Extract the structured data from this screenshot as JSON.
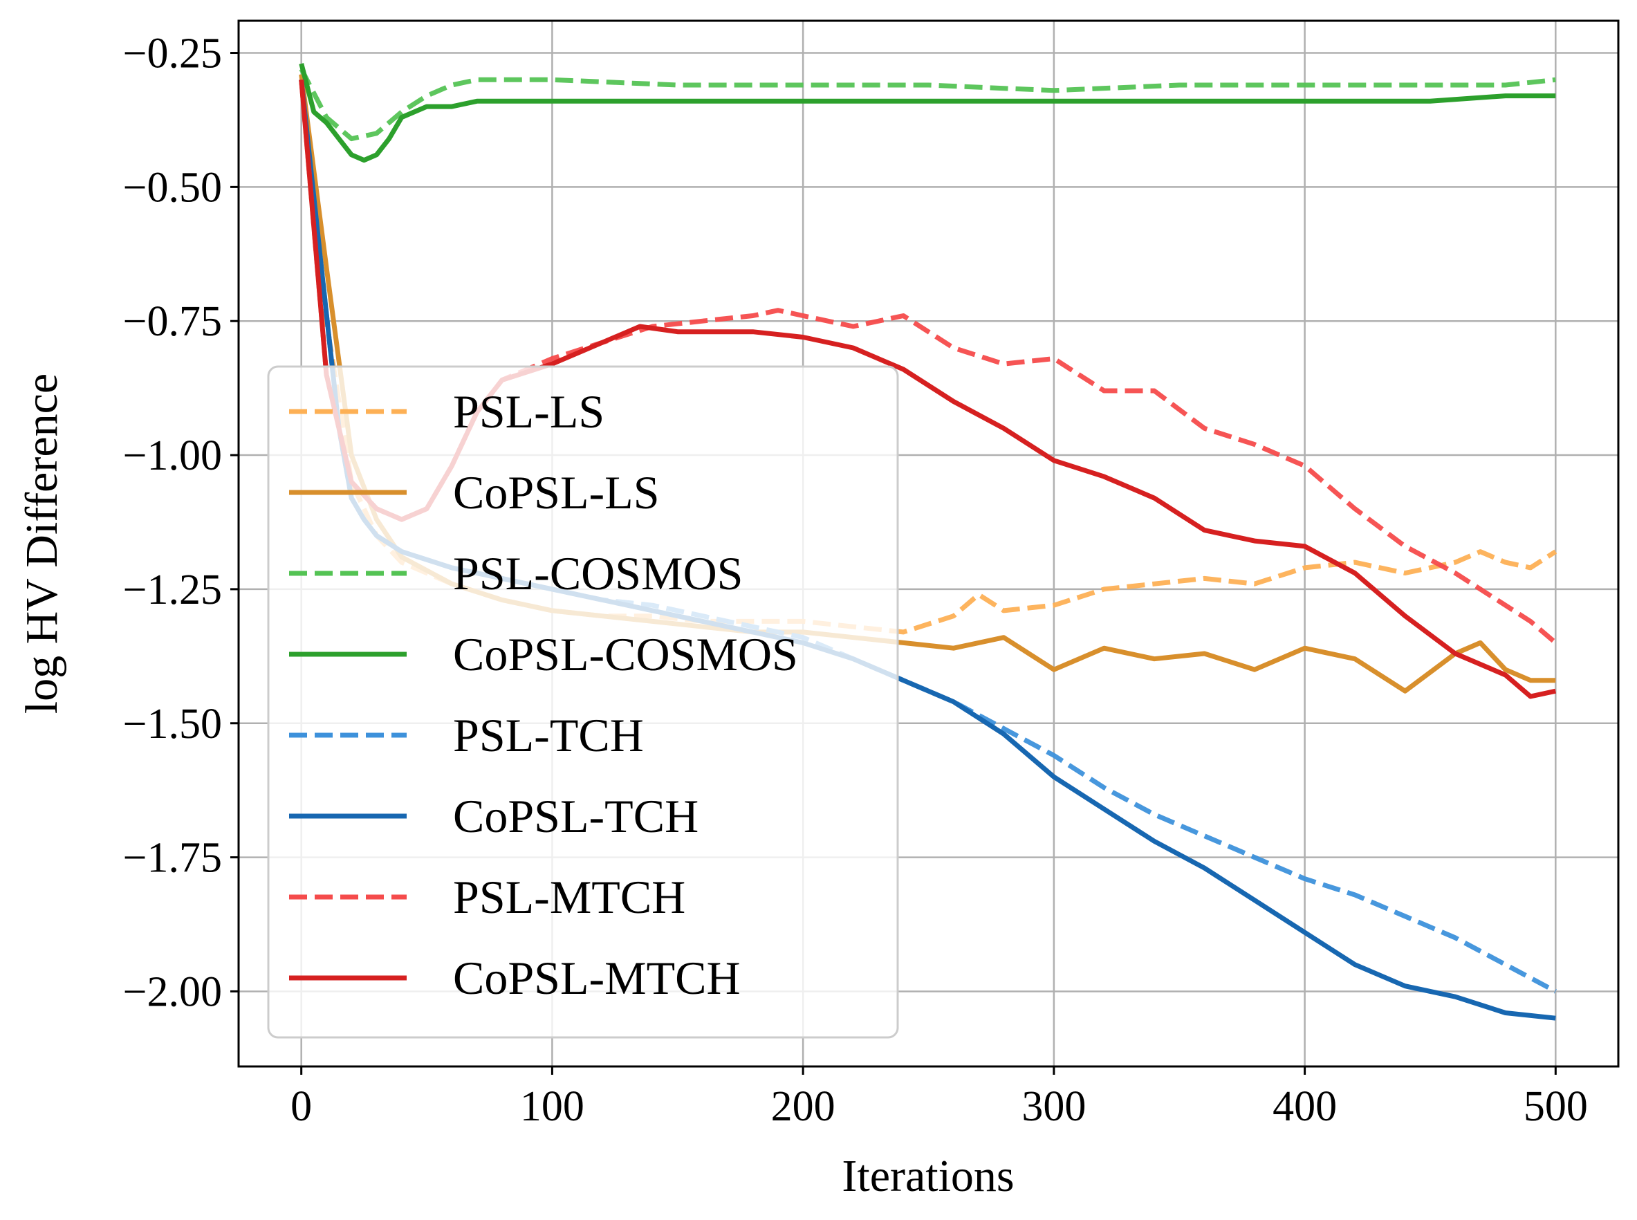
{
  "chart_data": {
    "type": "line",
    "title": "",
    "xlabel": "Iterations",
    "ylabel": "log HV Difference",
    "xlim": [
      -25,
      525
    ],
    "ylim": [
      -2.14,
      -0.19
    ],
    "x_ticks": [
      0,
      100,
      200,
      300,
      400,
      500
    ],
    "x_tick_labels": [
      "0",
      "100",
      "200",
      "300",
      "400",
      "500"
    ],
    "y_ticks": [
      -0.25,
      -0.5,
      -0.75,
      -1.0,
      -1.25,
      -1.5,
      -1.75,
      -2.0
    ],
    "y_tick_labels": [
      "−0.25",
      "−0.50",
      "−0.75",
      "−1.00",
      "−1.25",
      "−1.50",
      "−1.75",
      "−2.00"
    ],
    "grid": true,
    "legend_position": "center-left",
    "series": [
      {
        "name": "PSL-LS",
        "color": "#fdb055",
        "style": "dashed",
        "x": [
          0,
          10,
          20,
          30,
          40,
          60,
          80,
          100,
          120,
          140,
          160,
          180,
          200,
          220,
          240,
          260,
          270,
          280,
          300,
          320,
          340,
          360,
          380,
          400,
          420,
          440,
          460,
          470,
          480,
          490,
          500
        ],
        "y": [
          -0.3,
          -0.75,
          -1.05,
          -1.15,
          -1.2,
          -1.24,
          -1.27,
          -1.29,
          -1.3,
          -1.3,
          -1.31,
          -1.31,
          -1.31,
          -1.32,
          -1.33,
          -1.3,
          -1.26,
          -1.29,
          -1.28,
          -1.25,
          -1.24,
          -1.23,
          -1.24,
          -1.21,
          -1.2,
          -1.22,
          -1.2,
          -1.18,
          -1.2,
          -1.21,
          -1.18
        ]
      },
      {
        "name": "CoPSL-LS",
        "color": "#d88f2c",
        "style": "solid",
        "x": [
          0,
          10,
          20,
          30,
          40,
          60,
          80,
          100,
          120,
          140,
          160,
          180,
          200,
          220,
          240,
          260,
          280,
          300,
          320,
          340,
          360,
          380,
          400,
          420,
          440,
          460,
          470,
          480,
          490,
          500
        ],
        "y": [
          -0.29,
          -0.65,
          -1.0,
          -1.12,
          -1.19,
          -1.24,
          -1.27,
          -1.29,
          -1.3,
          -1.31,
          -1.32,
          -1.33,
          -1.33,
          -1.34,
          -1.35,
          -1.36,
          -1.34,
          -1.4,
          -1.36,
          -1.38,
          -1.37,
          -1.4,
          -1.36,
          -1.38,
          -1.44,
          -1.37,
          -1.35,
          -1.4,
          -1.42,
          -1.42
        ]
      },
      {
        "name": "PSL-COSMOS",
        "color": "#54c354",
        "style": "dashed",
        "x": [
          0,
          10,
          20,
          30,
          40,
          50,
          60,
          70,
          80,
          90,
          100,
          150,
          200,
          250,
          300,
          350,
          400,
          450,
          480,
          500
        ],
        "y": [
          -0.28,
          -0.37,
          -0.41,
          -0.4,
          -0.36,
          -0.33,
          -0.31,
          -0.3,
          -0.3,
          -0.3,
          -0.3,
          -0.31,
          -0.31,
          -0.31,
          -0.32,
          -0.31,
          -0.31,
          -0.31,
          -0.31,
          -0.3
        ]
      },
      {
        "name": "CoPSL-COSMOS",
        "color": "#2ca02c",
        "style": "solid",
        "x": [
          0,
          5,
          10,
          15,
          20,
          25,
          30,
          35,
          40,
          50,
          60,
          70,
          80,
          90,
          100,
          150,
          200,
          250,
          300,
          350,
          400,
          450,
          480,
          500
        ],
        "y": [
          -0.27,
          -0.36,
          -0.38,
          -0.41,
          -0.44,
          -0.45,
          -0.44,
          -0.41,
          -0.37,
          -0.35,
          -0.35,
          -0.34,
          -0.34,
          -0.34,
          -0.34,
          -0.34,
          -0.34,
          -0.34,
          -0.34,
          -0.34,
          -0.34,
          -0.34,
          -0.33,
          -0.33
        ]
      },
      {
        "name": "PSL-TCH",
        "color": "#3d91db",
        "style": "dashed",
        "x": [
          0,
          8,
          15,
          20,
          25,
          30,
          40,
          60,
          80,
          100,
          120,
          140,
          160,
          180,
          200,
          220,
          240,
          260,
          280,
          300,
          320,
          340,
          360,
          380,
          400,
          420,
          440,
          460,
          480,
          500
        ],
        "y": [
          -0.3,
          -0.65,
          -0.95,
          -1.08,
          -1.12,
          -1.15,
          -1.18,
          -1.21,
          -1.23,
          -1.25,
          -1.27,
          -1.28,
          -1.3,
          -1.32,
          -1.34,
          -1.38,
          -1.42,
          -1.46,
          -1.51,
          -1.56,
          -1.62,
          -1.67,
          -1.71,
          -1.75,
          -1.79,
          -1.82,
          -1.86,
          -1.9,
          -1.95,
          -2.0
        ]
      },
      {
        "name": "CoPSL-TCH",
        "color": "#1767b1",
        "style": "solid",
        "x": [
          0,
          8,
          15,
          20,
          25,
          30,
          40,
          60,
          80,
          100,
          120,
          140,
          160,
          180,
          200,
          220,
          240,
          260,
          280,
          300,
          320,
          340,
          360,
          380,
          400,
          420,
          440,
          460,
          480,
          500
        ],
        "y": [
          -0.3,
          -0.65,
          -0.95,
          -1.08,
          -1.12,
          -1.15,
          -1.18,
          -1.21,
          -1.23,
          -1.25,
          -1.27,
          -1.29,
          -1.31,
          -1.33,
          -1.35,
          -1.38,
          -1.42,
          -1.46,
          -1.52,
          -1.6,
          -1.66,
          -1.72,
          -1.77,
          -1.83,
          -1.89,
          -1.95,
          -1.99,
          -2.01,
          -2.04,
          -2.05
        ]
      },
      {
        "name": "PSL-MTCH",
        "color": "#f54b4b",
        "style": "dashed",
        "x": [
          0,
          10,
          20,
          30,
          40,
          50,
          60,
          70,
          80,
          100,
          120,
          140,
          160,
          180,
          190,
          200,
          220,
          240,
          260,
          280,
          300,
          320,
          340,
          360,
          380,
          400,
          420,
          440,
          460,
          480,
          490,
          500
        ],
        "y": [
          -0.3,
          -0.85,
          -1.05,
          -1.1,
          -1.12,
          -1.1,
          -1.02,
          -0.92,
          -0.86,
          -0.82,
          -0.79,
          -0.76,
          -0.75,
          -0.74,
          -0.73,
          -0.74,
          -0.76,
          -0.74,
          -0.8,
          -0.83,
          -0.82,
          -0.88,
          -0.88,
          -0.95,
          -0.98,
          -1.02,
          -1.1,
          -1.17,
          -1.22,
          -1.28,
          -1.31,
          -1.35
        ]
      },
      {
        "name": "CoPSL-MTCH",
        "color": "#d62020",
        "style": "solid",
        "x": [
          0,
          10,
          20,
          30,
          40,
          50,
          60,
          70,
          80,
          100,
          120,
          135,
          150,
          170,
          180,
          200,
          220,
          240,
          260,
          280,
          300,
          320,
          340,
          360,
          380,
          400,
          420,
          440,
          460,
          480,
          490,
          500
        ],
        "y": [
          -0.3,
          -0.85,
          -1.05,
          -1.1,
          -1.12,
          -1.1,
          -1.02,
          -0.92,
          -0.86,
          -0.83,
          -0.79,
          -0.76,
          -0.77,
          -0.77,
          -0.77,
          -0.78,
          -0.8,
          -0.84,
          -0.9,
          -0.95,
          -1.01,
          -1.04,
          -1.08,
          -1.14,
          -1.16,
          -1.17,
          -1.22,
          -1.3,
          -1.37,
          -1.41,
          -1.45,
          -1.44
        ]
      }
    ]
  }
}
